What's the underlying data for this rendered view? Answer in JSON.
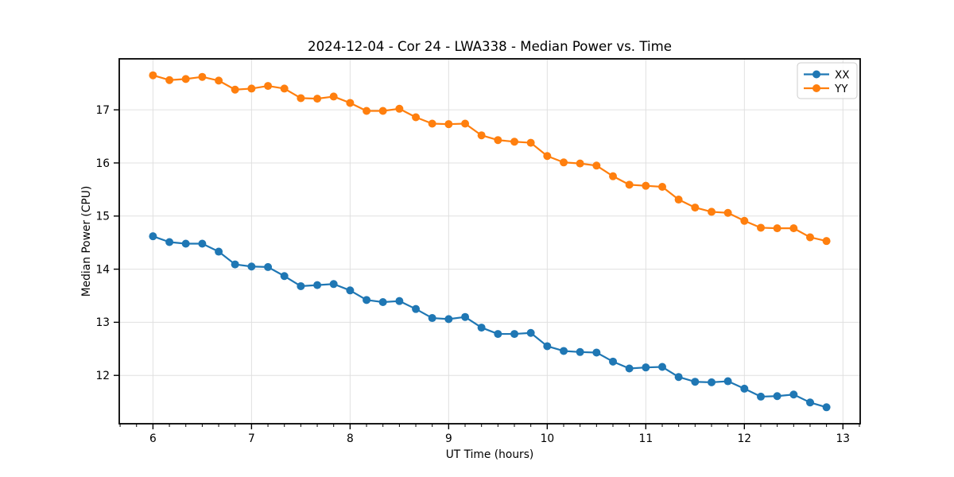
{
  "chart_data": {
    "type": "line",
    "title": "2024-12-04 - Cor 24 - LWA338 - Median Power vs. Time",
    "xlabel": "UT Time (hours)",
    "ylabel": "Median Power (CPU)",
    "xlim": [
      5.658,
      13.175
    ],
    "ylim": [
      11.09,
      17.96
    ],
    "xticks": [
      6,
      7,
      8,
      9,
      10,
      11,
      12,
      13
    ],
    "yticks": [
      12,
      13,
      14,
      15,
      16,
      17
    ],
    "grid": true,
    "grid_color": "#e0e0e0",
    "background": "#ffffff",
    "legend_position": "upper right",
    "x": [
      6.0,
      6.167,
      6.333,
      6.5,
      6.667,
      6.833,
      7.0,
      7.167,
      7.333,
      7.5,
      7.667,
      7.833,
      8.0,
      8.167,
      8.333,
      8.5,
      8.667,
      8.833,
      9.0,
      9.167,
      9.333,
      9.5,
      9.667,
      9.833,
      10.0,
      10.167,
      10.333,
      10.5,
      10.667,
      10.833,
      11.0,
      11.167,
      11.333,
      11.5,
      11.667,
      11.833,
      12.0,
      12.167,
      12.333,
      12.5,
      12.667,
      12.833
    ],
    "series": [
      {
        "name": "XX",
        "color": "#1f77b4",
        "values": [
          14.62,
          14.51,
          14.48,
          14.48,
          14.33,
          14.09,
          14.05,
          14.04,
          13.87,
          13.68,
          13.7,
          13.72,
          13.6,
          13.42,
          13.38,
          13.4,
          13.25,
          13.08,
          13.06,
          13.1,
          12.9,
          12.78,
          12.78,
          12.8,
          12.55,
          12.46,
          12.44,
          12.43,
          12.26,
          12.13,
          12.15,
          12.16,
          11.97,
          11.88,
          11.87,
          11.89,
          11.75,
          11.6,
          11.61,
          11.64,
          11.49,
          11.4
        ]
      },
      {
        "name": "YY",
        "color": "#ff7f0e",
        "values": [
          17.65,
          17.56,
          17.58,
          17.62,
          17.55,
          17.38,
          17.4,
          17.45,
          17.4,
          17.22,
          17.21,
          17.25,
          17.13,
          16.98,
          16.98,
          17.02,
          16.86,
          16.74,
          16.73,
          16.74,
          16.52,
          16.43,
          16.4,
          16.38,
          16.13,
          16.01,
          15.99,
          15.95,
          15.75,
          15.59,
          15.57,
          15.55,
          15.31,
          15.16,
          15.08,
          15.06,
          14.91,
          14.78,
          14.77,
          14.77,
          14.6,
          14.53
        ]
      }
    ]
  }
}
